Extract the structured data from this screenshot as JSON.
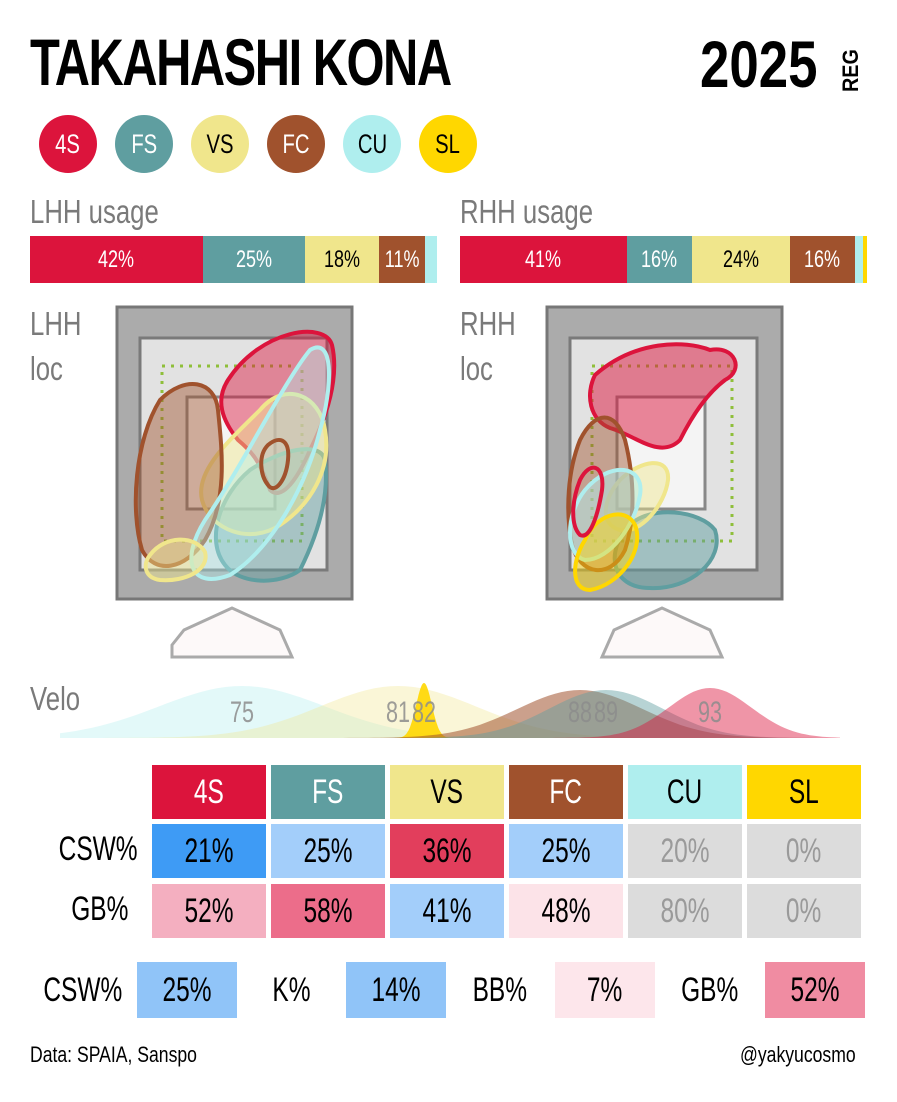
{
  "header": {
    "player_name": "TAKAHASHI KONA",
    "year": "2025",
    "season_tag": "REG"
  },
  "pitches": [
    {
      "code": "4S",
      "color": "#DC143C",
      "text": "#ffffff"
    },
    {
      "code": "FS",
      "color": "#5F9EA0",
      "text": "#ffffff"
    },
    {
      "code": "VS",
      "color": "#F0E68C",
      "text": "#000000"
    },
    {
      "code": "FC",
      "color": "#A0522D",
      "text": "#ffffff"
    },
    {
      "code": "CU",
      "color": "#AFEEEE",
      "text": "#000000"
    },
    {
      "code": "SL",
      "color": "#FFD700",
      "text": "#000000"
    }
  ],
  "labels": {
    "lhh_usage": "LHH usage",
    "rhh_usage": "RHH usage",
    "lhh_loc_1": "LHH",
    "lhh_loc_2": "loc",
    "rhh_loc_1": "RHH",
    "rhh_loc_2": "loc",
    "velo": "Velo"
  },
  "chart_data": [
    {
      "type": "bar",
      "title": "LHH usage",
      "categories": [
        "4S",
        "FS",
        "VS",
        "FC",
        "CU",
        "SL"
      ],
      "values": [
        42,
        25,
        18,
        11,
        3,
        0
      ],
      "value_labels": [
        "42%",
        "25%",
        "18%",
        "11%",
        "",
        ""
      ]
    },
    {
      "type": "bar",
      "title": "RHH usage",
      "categories": [
        "4S",
        "FS",
        "VS",
        "FC",
        "CU",
        "SL"
      ],
      "values": [
        41,
        16,
        24,
        16,
        2,
        1
      ],
      "value_labels": [
        "41%",
        "16%",
        "24%",
        "16%",
        "",
        ""
      ]
    },
    {
      "type": "area",
      "title": "Velo",
      "series": [
        {
          "name": "CU",
          "peak": 75,
          "label": "75"
        },
        {
          "name": "VS",
          "peak": 81,
          "label": "81"
        },
        {
          "name": "SL",
          "peak": 82,
          "label": "82"
        },
        {
          "name": "FC",
          "peak": 88,
          "label": "88"
        },
        {
          "name": "FS",
          "peak": 89,
          "label": "89"
        },
        {
          "name": "4S",
          "peak": 93,
          "label": "93"
        }
      ],
      "xlim": [
        68,
        98
      ]
    },
    {
      "type": "table",
      "columns": [
        "4S",
        "FS",
        "VS",
        "FC",
        "CU",
        "SL"
      ],
      "rows": [
        {
          "label": "CSW%",
          "values": [
            "21%",
            "25%",
            "36%",
            "25%",
            "20%",
            "0%"
          ],
          "bg": [
            "#3E9BF5",
            "#A3CEFA",
            "#E23E5C",
            "#A3CEFA",
            "#DCDCDC",
            "#DCDCDC"
          ],
          "fg": [
            "#000",
            "#000",
            "#000",
            "#000",
            "#9a9a9a",
            "#9a9a9a"
          ]
        },
        {
          "label": "GB%",
          "values": [
            "52%",
            "58%",
            "41%",
            "48%",
            "80%",
            "0%"
          ],
          "bg": [
            "#F4AFC0",
            "#EC6D8A",
            "#A3CEFA",
            "#FCE3E8",
            "#DCDCDC",
            "#DCDCDC"
          ],
          "fg": [
            "#000",
            "#000",
            "#000",
            "#000",
            "#9a9a9a",
            "#9a9a9a"
          ]
        }
      ]
    },
    {
      "type": "table",
      "columns": [
        "CSW%",
        "K%",
        "BB%",
        "GB%"
      ],
      "rows": [
        {
          "values": [
            "25%",
            "14%",
            "7%",
            "52%"
          ],
          "bg": [
            "#90C4F8",
            "#90C4F8",
            "#FDE6EB",
            "#F08CA2"
          ]
        }
      ]
    }
  ],
  "footer": {
    "source": "Data: SPAIA, Sanspo",
    "handle": "@yakyucosmo"
  }
}
